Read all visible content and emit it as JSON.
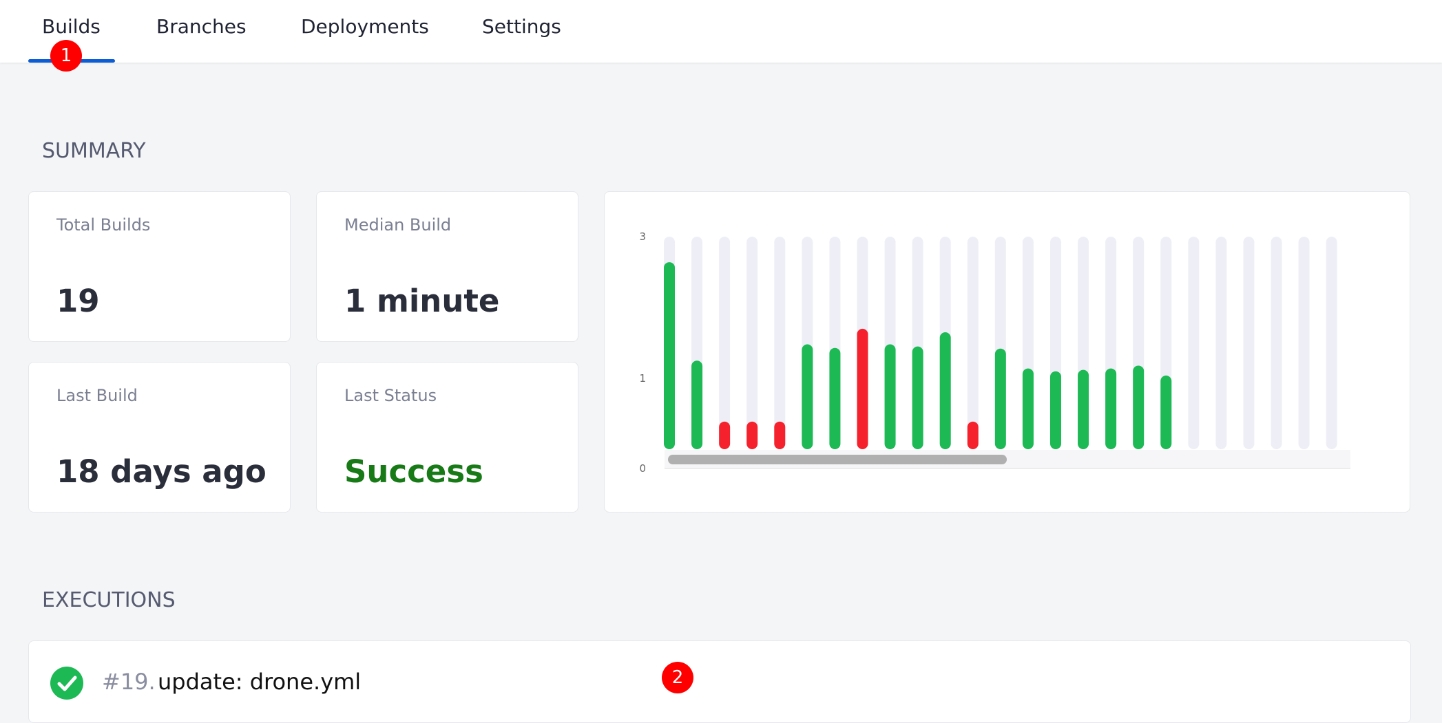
{
  "tabs": [
    "Builds",
    "Branches",
    "Deployments",
    "Settings"
  ],
  "badges": [
    "1",
    "2"
  ],
  "summary": {
    "title": "SUMMARY",
    "cards": [
      {
        "label": "Total Builds",
        "value": "19"
      },
      {
        "label": "Median Build",
        "value": "1 minute"
      },
      {
        "label": "Last Build",
        "value": "18 days ago"
      },
      {
        "label": "Last Status",
        "value": "Success"
      }
    ]
  },
  "chart_data": {
    "type": "bar",
    "values": [
      2.64,
      1.25,
      0.39,
      0.39,
      0.39,
      1.48,
      1.43,
      1.7,
      1.48,
      1.45,
      1.65,
      0.39,
      1.42,
      1.14,
      1.1,
      1.12,
      1.14,
      1.18,
      1.04
    ],
    "colors": [
      "#1db954",
      "#1db954",
      "#f5222d",
      "#f5222d",
      "#f5222d",
      "#1db954",
      "#1db954",
      "#f5222d",
      "#1db954",
      "#1db954",
      "#1db954",
      "#f5222d",
      "#1db954",
      "#1db954",
      "#1db954",
      "#1db954",
      "#1db954",
      "#1db954",
      "#1db954"
    ],
    "ylim": [
      0,
      3
    ],
    "yticks": [
      0,
      1,
      3
    ]
  },
  "executions": {
    "title": "EXECUTIONS",
    "rows": [
      {
        "number": "#19.",
        "message": "update: drone.yml"
      }
    ]
  }
}
